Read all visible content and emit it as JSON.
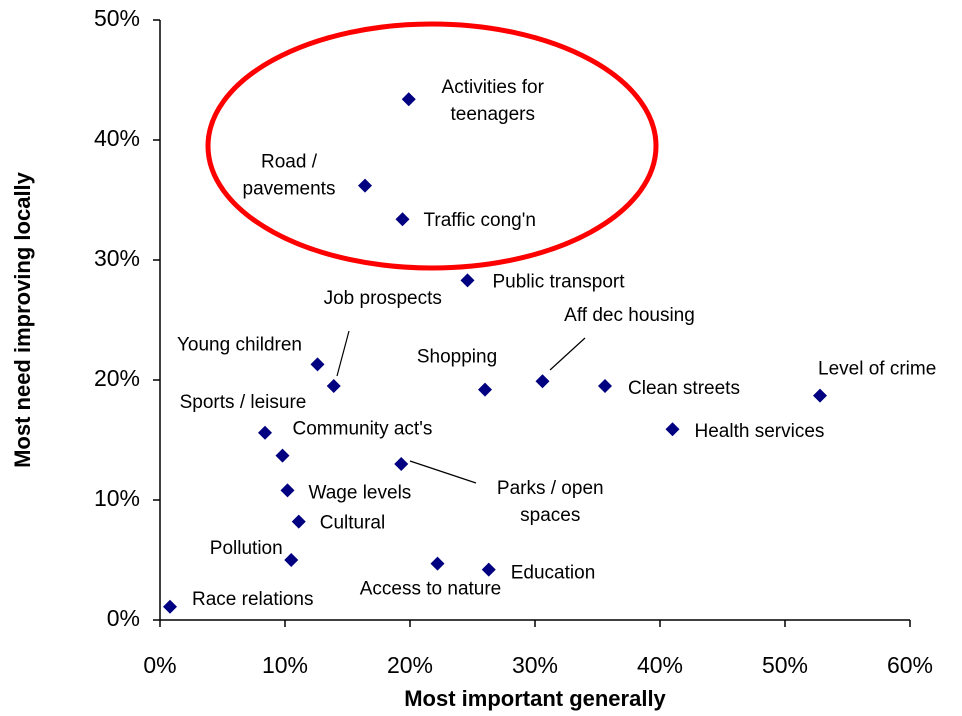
{
  "chart_data": {
    "type": "scatter",
    "xlabel": "Most important generally",
    "ylabel": "Most need improving locally",
    "color": "#000080",
    "labels": [
      [
        "Activities for",
        "teenagers"
      ],
      [
        "Road /",
        "pavements"
      ],
      [
        "Traffic cong'n"
      ],
      [
        "Public transport"
      ],
      [
        "Job prospects"
      ],
      [
        "Young children"
      ],
      [
        "Shopping"
      ],
      [
        "Aff dec housing"
      ],
      [
        "Clean streets"
      ],
      [
        "Level of crime"
      ],
      [
        "Health services"
      ],
      [
        "Sports / leisure"
      ],
      [
        "Community act's"
      ],
      [
        "Parks / open",
        "spaces"
      ],
      [
        "Wage levels"
      ],
      [
        "Cultural"
      ],
      [
        "Pollution"
      ],
      [
        "Access to nature"
      ],
      [
        "Education"
      ],
      [
        "Race relations"
      ]
    ],
    "x": [
      19.9,
      16.4,
      19.4,
      24.6,
      13.9,
      12.6,
      26.0,
      30.6,
      35.6,
      52.8,
      41.0,
      8.4,
      9.8,
      19.3,
      10.2,
      11.1,
      10.5,
      22.2,
      26.3,
      0.8
    ],
    "y": [
      43.4,
      36.2,
      33.4,
      28.3,
      19.5,
      21.3,
      19.2,
      19.9,
      19.5,
      18.7,
      15.9,
      15.6,
      13.7,
      13.0,
      10.8,
      8.2,
      5.0,
      4.7,
      4.2,
      1.1
    ],
    "xlim": [
      0,
      60
    ],
    "xticks": [
      {
        "value": 0,
        "label": "0%"
      },
      {
        "value": 10,
        "label": "10%"
      },
      {
        "value": 20,
        "label": "20%"
      },
      {
        "value": 30,
        "label": "30%"
      },
      {
        "value": 40,
        "label": "40%"
      },
      {
        "value": 50,
        "label": "50%"
      },
      {
        "value": 60,
        "label": "60%"
      }
    ],
    "ylim": [
      0,
      50
    ],
    "yticks": [
      {
        "value": 0,
        "label": "0%"
      },
      {
        "value": 10,
        "label": "10%"
      },
      {
        "value": 20,
        "label": "20%"
      },
      {
        "value": 30,
        "label": "30%"
      },
      {
        "value": 40,
        "label": "40%"
      },
      {
        "value": 50,
        "label": "50%"
      }
    ]
  }
}
